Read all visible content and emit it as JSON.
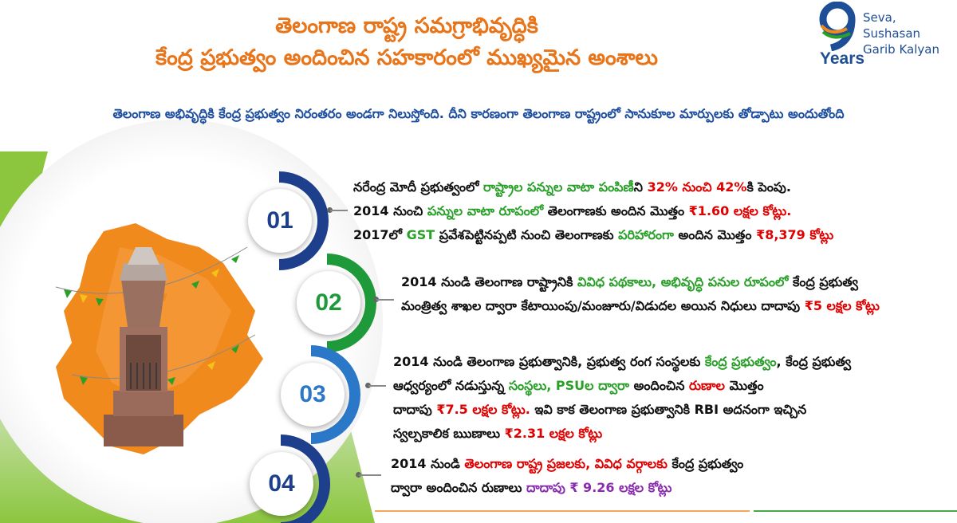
{
  "header": {
    "title_line1": "తెలంగాణ రాష్ట్ర సమగ్రాభివృద్ధికి",
    "title_line2": "కేంద్ర ప్రభుత్వం అందించిన సహకారంలో ముఖ్యమైన అంశాలు",
    "subtitle": "తెలంగాణ అభివృద్ధికి కేంద్ర ప్రభుత్వం నిరంతరం అండగా నిలుస్తోంది. దీని కారణంగా తెలంగాణ రాష్ట్రంలో సానుకూల మార్పులకు తోడ్పాటు అందుతోంది"
  },
  "logo": {
    "number": "9",
    "line1": "Seva, Sushasan",
    "line2": "Garib Kalyan",
    "years": "Years"
  },
  "colors": {
    "orange": "#e8751a",
    "blue": "#1d4ea0",
    "green": "#2aa02a",
    "red": "#e00000",
    "purple": "#8a2bb0"
  },
  "points": [
    {
      "num": "01",
      "lines": [
        [
          {
            "t": "నరేంద్ర మోదీ ప్రభుత్వంలో "
          },
          {
            "t": "రాష్ట్రాల పన్నుల వాటా పంపిణీ",
            "c": "g"
          },
          {
            "t": "ని "
          },
          {
            "t": "32% నుంచి 42%",
            "c": "r"
          },
          {
            "t": "కి పెంపు."
          }
        ],
        [
          {
            "t": "2014 నుంచి "
          },
          {
            "t": "పన్నుల వాటా రూపంలో",
            "c": "g"
          },
          {
            "t": " తెలంగాణకు అందిన మొత్తం  "
          },
          {
            "t": "₹1.60 లక్షల కోట్లు.",
            "c": "r"
          }
        ],
        [
          {
            "t": "2017లో "
          },
          {
            "t": "GST",
            "c": "g"
          },
          {
            "t": " ప్రవేశపెట్టినప్పటి నుంచి తెలంగాణకు "
          },
          {
            "t": "పరిహారంగా",
            "c": "g"
          },
          {
            "t": " అందిన మొత్తం "
          },
          {
            "t": "₹8,379 కోట్లు",
            "c": "r"
          }
        ]
      ]
    },
    {
      "num": "02",
      "lines": [
        [
          {
            "t": "2014 నుండి తెలంగాణ రాష్ట్రానికి "
          },
          {
            "t": "వివిధ పథకాలు, అభివృద్ధి పనుల రూపంలో",
            "c": "g"
          },
          {
            "t": " కేంద్ర ప్రభుత్వ"
          }
        ],
        [
          {
            "t": "మంత్రిత్వ శాఖల ద్వారా కేటాయింపు/మంజూరు/విడుదల అయిన నిధులు దాదాపు "
          },
          {
            "t": "₹5 లక్షల కోట్లు",
            "c": "r"
          }
        ]
      ]
    },
    {
      "num": "03",
      "lines": [
        [
          {
            "t": "2014 నుండి తెలంగాణ ప్రభుత్వానికి, ప్రభుత్వ రంగ సంస్థలకు "
          },
          {
            "t": "కేంద్ర ప్రభుత్వం",
            "c": "g"
          },
          {
            "t": ", కేంద్ర ప్రభుత్వ"
          }
        ],
        [
          {
            "t": "ఆధ్వర్యంలో నడుస్తున్న "
          },
          {
            "t": "సంస్థలు, PSUల ద్వారా",
            "c": "g"
          },
          {
            "t": " అందించిన "
          },
          {
            "t": "రుణాల",
            "c": "r"
          },
          {
            "t": " మొత్తం"
          }
        ],
        [
          {
            "t": "దాదాపు "
          },
          {
            "t": "₹7.5 లక్షల కోట్లు.",
            "c": "r"
          },
          {
            "t": " ఇవి కాక తెలంగాణ ప్రభుత్వానికి RBI అదనంగా ఇచ్చిన"
          }
        ],
        [
          {
            "t": "స్వల్పకాలిక ఋణాలు "
          },
          {
            "t": "₹2.31 లక్షల కోట్లు",
            "c": "r"
          }
        ]
      ]
    },
    {
      "num": "04",
      "lines": [
        [
          {
            "t": "2014 నుండి "
          },
          {
            "t": "తెలంగాణ రాష్ట్ర ప్రజలకు, వివిధ వర్గాలకు",
            "c": "r"
          },
          {
            "t": " కేంద్ర ప్రభుత్వం"
          }
        ],
        [
          {
            "t": "ద్వారా అందించిన రుణాలు "
          },
          {
            "t": "దాదాపు ₹ 9.26 లక్షల కోట్లు",
            "c": "p"
          }
        ]
      ]
    }
  ]
}
